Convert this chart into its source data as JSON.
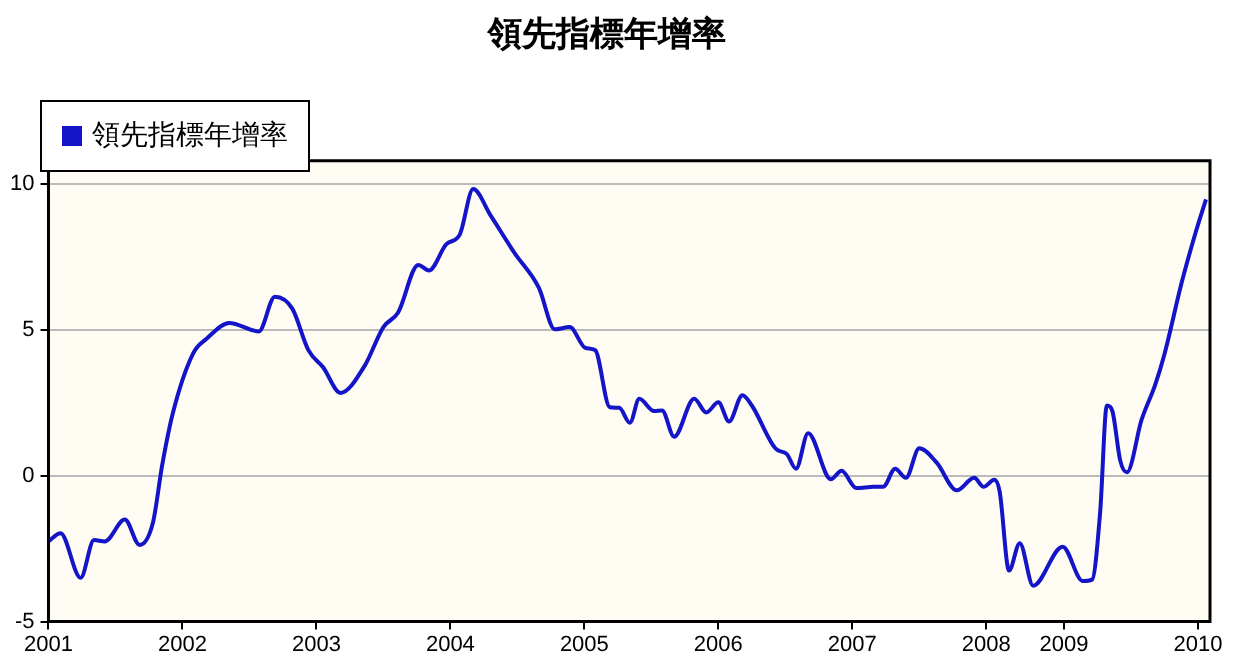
{
  "chart_data": {
    "type": "line",
    "title": "領先指標年增率",
    "x": [
      2001.0,
      2001.09,
      2001.24,
      2001.34,
      2001.42,
      2001.57,
      2001.68,
      2001.78,
      2001.85,
      2001.93,
      2002.08,
      2002.18,
      2002.35,
      2002.57,
      2002.69,
      2002.82,
      2002.94,
      2003.05,
      2003.18,
      2003.36,
      2003.5,
      2003.61,
      2003.76,
      2003.84,
      2003.97,
      2004.07,
      2004.17,
      2004.3,
      2004.48,
      2004.66,
      2004.78,
      2004.89,
      2005.01,
      2005.08,
      2005.19,
      2005.26,
      2005.34,
      2005.41,
      2005.52,
      2005.58,
      2005.67,
      2005.82,
      2005.91,
      2006.0,
      2006.08,
      2006.18,
      2006.25,
      2006.43,
      2006.51,
      2006.58,
      2006.67,
      2006.84,
      2006.92,
      2007.03,
      2007.16,
      2007.23,
      2007.32,
      2007.4,
      2007.5,
      2007.63,
      2007.78,
      2007.91,
      2007.98,
      2008.06,
      2008.1,
      2008.17,
      2008.25,
      2008.35,
      2008.57,
      2008.72,
      2008.79,
      2008.85,
      2008.9,
      2008.94,
      2009.0,
      2009.05,
      2009.16,
      2009.26,
      2009.33,
      2009.46,
      2009.56,
      2009.64
    ],
    "series": [
      {
        "name": "領先指標年增率",
        "color": "#1414c8",
        "values": [
          -2.25,
          -1.97,
          -3.5,
          -2.2,
          -2.25,
          -1.5,
          -2.37,
          -1.6,
          0.4,
          2.18,
          4.2,
          4.7,
          5.24,
          4.95,
          6.14,
          5.73,
          4.31,
          3.72,
          2.84,
          3.77,
          5.1,
          5.6,
          7.23,
          7.04,
          7.94,
          8.27,
          9.83,
          8.93,
          7.63,
          6.45,
          5.02,
          5.1,
          4.38,
          4.31,
          2.35,
          2.33,
          1.82,
          2.64,
          2.22,
          2.24,
          1.34,
          2.64,
          2.17,
          2.52,
          1.86,
          2.76,
          2.41,
          0.92,
          0.75,
          0.24,
          1.46,
          -0.12,
          0.17,
          -0.42,
          -0.38,
          -0.38,
          0.24,
          -0.07,
          0.94,
          0.45,
          -0.5,
          -0.07,
          -0.38,
          -0.14,
          -0.54,
          -3.25,
          -2.31,
          -3.77,
          -2.43,
          -3.61,
          -3.56,
          -1.25,
          2.41,
          2.24,
          0.52,
          0.12,
          1.93,
          3.11,
          4.17,
          6.65,
          8.3,
          9.48
        ]
      }
    ],
    "xlim": [
      2001,
      2009.67
    ],
    "xticks": [
      2001,
      2002,
      2003,
      2004,
      2005,
      2006,
      2007,
      2008,
      {
        "value": 2008.58,
        "label": "2009"
      },
      {
        "value": 2009.58,
        "label": "2010"
      }
    ],
    "ylim": [
      -5,
      10.8
    ],
    "yticks": [
      -5,
      0,
      5,
      10
    ],
    "grid": "y",
    "legend": "top left",
    "marker": "none",
    "line_style": "solid"
  }
}
